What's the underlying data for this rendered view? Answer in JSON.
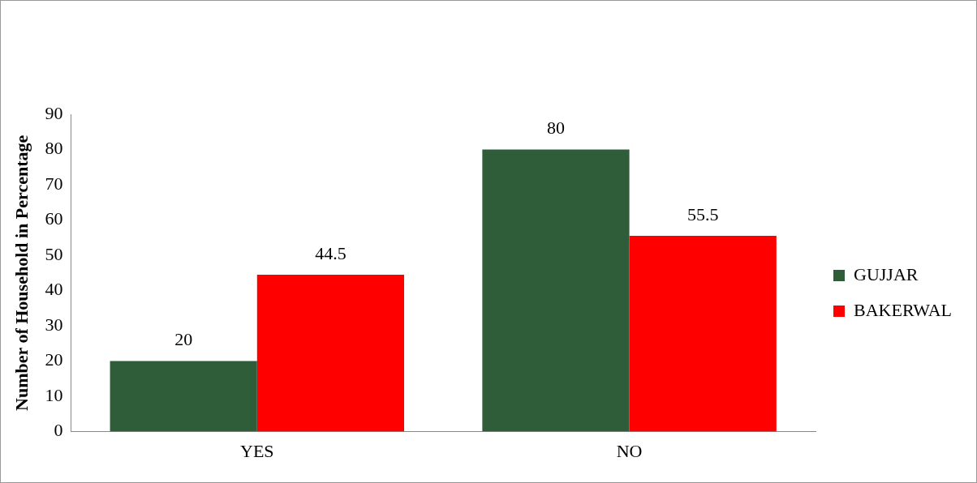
{
  "chart_data": {
    "type": "bar",
    "ylabel": "Number of Household in Percentage",
    "categories": [
      "YES",
      "NO"
    ],
    "series": [
      {
        "name": "GUJJAR",
        "color": "#2f5d3a",
        "values": [
          20,
          80
        ]
      },
      {
        "name": "BAKERWAL",
        "color": "#ff0000",
        "values": [
          44.5,
          55.5
        ]
      }
    ],
    "ylim": [
      0,
      90
    ],
    "yticks": [
      0,
      10,
      20,
      30,
      40,
      50,
      60,
      70,
      80,
      90
    ],
    "grid": false,
    "legend": "right",
    "data_labels": true
  }
}
